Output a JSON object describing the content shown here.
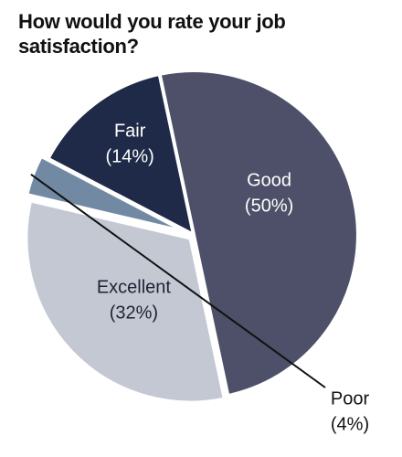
{
  "chart_data": {
    "type": "pie",
    "title": "How would you rate your job satisfaction?",
    "slices": [
      {
        "label": "Good",
        "value": 50,
        "value_label": "(50%)",
        "color": "#4d5068",
        "text_color": "#ffffff"
      },
      {
        "label": "Excellent",
        "value": 32,
        "value_label": "(32%)",
        "color": "#c3c8d3",
        "text_color": "#1e2233"
      },
      {
        "label": "Poor",
        "value": 4,
        "value_label": "(4%)",
        "color": "#7189a3",
        "text_color": "#111111"
      },
      {
        "label": "Fair",
        "value": 14,
        "value_label": "(14%)",
        "color": "#1e2a47",
        "text_color": "#ffffff"
      }
    ],
    "legend": "none",
    "label_position": "inside, Poor outside with leader line"
  }
}
